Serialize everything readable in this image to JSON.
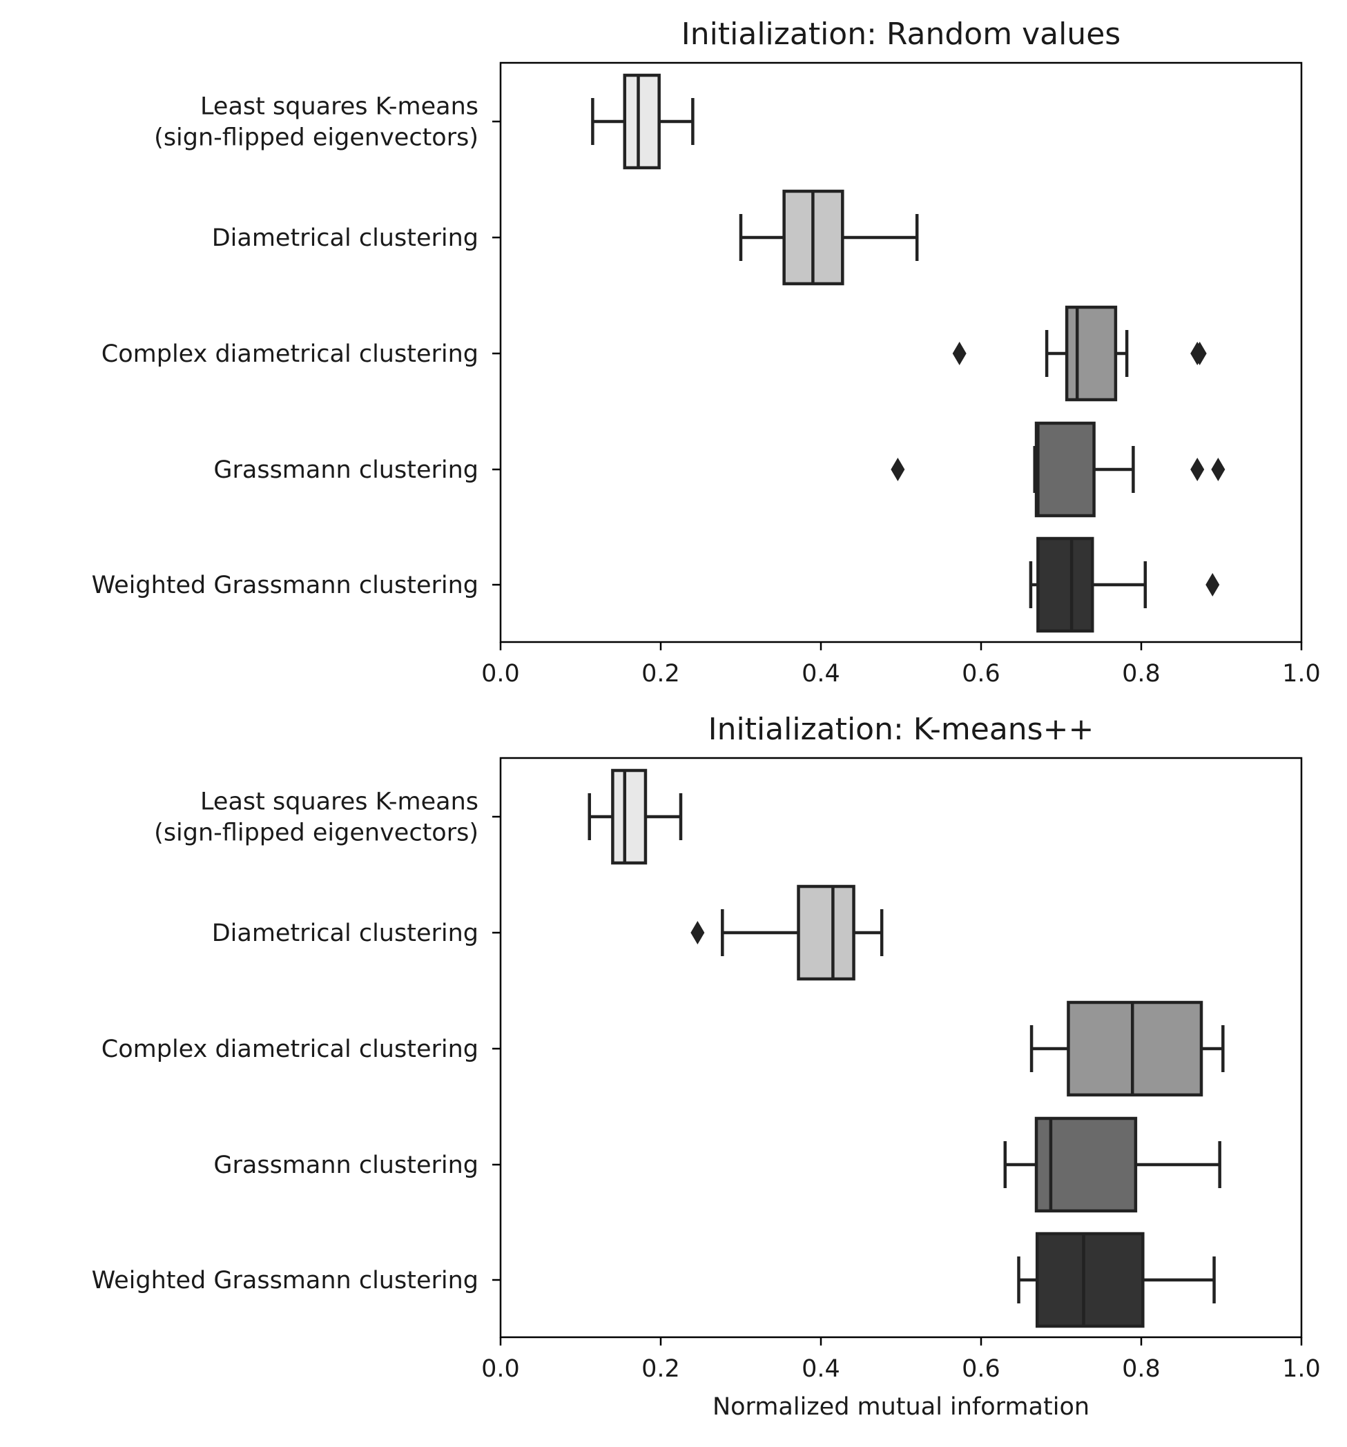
{
  "chart_data": [
    {
      "type": "boxplot",
      "orientation": "horizontal",
      "title": "Initialization: Random values",
      "xlabel": "",
      "xlim": [
        0.0,
        1.0
      ],
      "xticks": [
        "0.0",
        "0.2",
        "0.4",
        "0.6",
        "0.8",
        "1.0"
      ],
      "categories": [
        [
          "Least squares K-means",
          "(sign-flipped eigenvectors)"
        ],
        [
          "Diametrical clustering"
        ],
        [
          "Complex diametrical clustering"
        ],
        [
          "Grassmann clustering"
        ],
        [
          "Weighted Grassmann clustering"
        ]
      ],
      "colors": [
        "#e8e8e8",
        "#c6c6c6",
        "#969696",
        "#6a6a6a",
        "#333333"
      ],
      "boxes": [
        {
          "whisker_low": 0.115,
          "q1": 0.155,
          "median": 0.172,
          "q3": 0.198,
          "whisker_high": 0.24,
          "outliers": []
        },
        {
          "whisker_low": 0.3,
          "q1": 0.354,
          "median": 0.39,
          "q3": 0.427,
          "whisker_high": 0.52,
          "outliers": []
        },
        {
          "whisker_low": 0.682,
          "q1": 0.707,
          "median": 0.72,
          "q3": 0.768,
          "whisker_high": 0.782,
          "outliers": [
            0.573,
            0.87,
            0.873
          ]
        },
        {
          "whisker_low": 0.667,
          "q1": 0.669,
          "median": 0.671,
          "q3": 0.741,
          "whisker_high": 0.79,
          "outliers": [
            0.496,
            0.87,
            0.896
          ]
        },
        {
          "whisker_low": 0.662,
          "q1": 0.671,
          "median": 0.713,
          "q3": 0.739,
          "whisker_high": 0.805,
          "outliers": [
            0.889
          ]
        }
      ]
    },
    {
      "type": "boxplot",
      "orientation": "horizontal",
      "title": "Initialization: K-means++",
      "xlabel": "Normalized mutual information",
      "xlim": [
        0.0,
        1.0
      ],
      "xticks": [
        "0.0",
        "0.2",
        "0.4",
        "0.6",
        "0.8",
        "1.0"
      ],
      "categories": [
        [
          "Least squares K-means",
          "(sign-flipped eigenvectors)"
        ],
        [
          "Diametrical clustering"
        ],
        [
          "Complex diametrical clustering"
        ],
        [
          "Grassmann clustering"
        ],
        [
          "Weighted Grassmann clustering"
        ]
      ],
      "colors": [
        "#e8e8e8",
        "#c6c6c6",
        "#969696",
        "#6a6a6a",
        "#333333"
      ],
      "boxes": [
        {
          "whisker_low": 0.111,
          "q1": 0.14,
          "median": 0.155,
          "q3": 0.181,
          "whisker_high": 0.225,
          "outliers": []
        },
        {
          "whisker_low": 0.277,
          "q1": 0.372,
          "median": 0.415,
          "q3": 0.441,
          "whisker_high": 0.476,
          "outliers": [
            0.246
          ]
        },
        {
          "whisker_low": 0.663,
          "q1": 0.709,
          "median": 0.789,
          "q3": 0.875,
          "whisker_high": 0.902,
          "outliers": []
        },
        {
          "whisker_low": 0.63,
          "q1": 0.669,
          "median": 0.687,
          "q3": 0.793,
          "whisker_high": 0.898,
          "outliers": []
        },
        {
          "whisker_low": 0.647,
          "q1": 0.67,
          "median": 0.728,
          "q3": 0.802,
          "whisker_high": 0.891,
          "outliers": []
        }
      ]
    }
  ]
}
